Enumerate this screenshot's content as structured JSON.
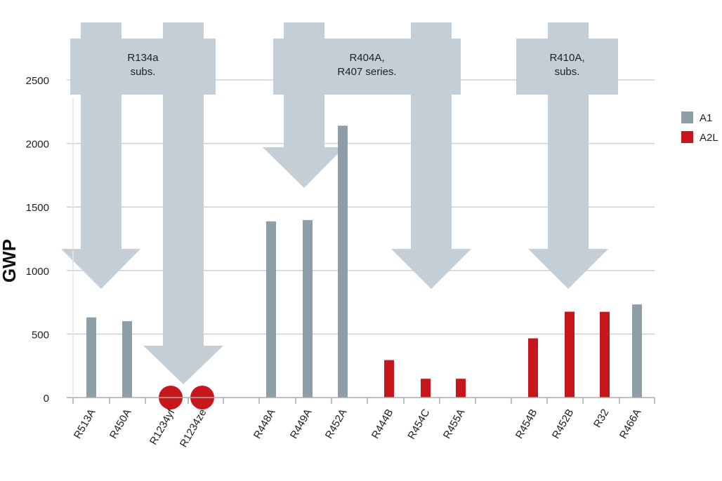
{
  "chart_data": {
    "type": "bar",
    "ylabel": "GWP",
    "ylim": [
      0,
      2800
    ],
    "yticks": [
      0,
      500,
      1000,
      1500,
      2000,
      2500
    ],
    "grid": true,
    "legend_position": "right",
    "legend": [
      {
        "name": "A1",
        "color": "#8e9ea8"
      },
      {
        "name": "A2L",
        "color": "#c8161d"
      }
    ],
    "categories": [
      "R513A",
      "R450A",
      "R1234yf",
      "R1234ze",
      "R448A",
      "R449A",
      "R452A",
      "R444B",
      "R454C",
      "R455A",
      "R454B",
      "R452B",
      "R32",
      "R466A"
    ],
    "points": [
      {
        "label": "R513A",
        "value": 631,
        "class": "A1",
        "marker": "bar"
      },
      {
        "label": "R450A",
        "value": 601,
        "class": "A1",
        "marker": "bar"
      },
      {
        "label": "R1234yf",
        "value": 4,
        "class": "A2L",
        "marker": "dot"
      },
      {
        "label": "R1234ze",
        "value": 6,
        "class": "A2L",
        "marker": "dot"
      },
      {
        "label": "R448A",
        "value": 1387,
        "class": "A1",
        "marker": "bar"
      },
      {
        "label": "R449A",
        "value": 1397,
        "class": "A1",
        "marker": "bar"
      },
      {
        "label": "R452A",
        "value": 2140,
        "class": "A1",
        "marker": "bar"
      },
      {
        "label": "R444B",
        "value": 295,
        "class": "A2L",
        "marker": "bar"
      },
      {
        "label": "R454C",
        "value": 148,
        "class": "A2L",
        "marker": "bar"
      },
      {
        "label": "R455A",
        "value": 148,
        "class": "A2L",
        "marker": "bar"
      },
      {
        "label": "R454B",
        "value": 466,
        "class": "A2L",
        "marker": "bar"
      },
      {
        "label": "R452B",
        "value": 676,
        "class": "A2L",
        "marker": "bar"
      },
      {
        "label": "R32",
        "value": 675,
        "class": "A2L",
        "marker": "bar"
      },
      {
        "label": "R466A",
        "value": 733,
        "class": "A1",
        "marker": "bar"
      }
    ],
    "groups": [
      {
        "label_lines": [
          "R134a",
          "subs."
        ]
      },
      {
        "label_lines": [
          "R404A,",
          "R407 series."
        ]
      },
      {
        "label_lines": [
          "R410A,",
          "subs."
        ]
      }
    ],
    "arrow_color": "#c3ced6",
    "grid_color": "#d0d0d0",
    "axis_color": "#aaaaaa"
  }
}
